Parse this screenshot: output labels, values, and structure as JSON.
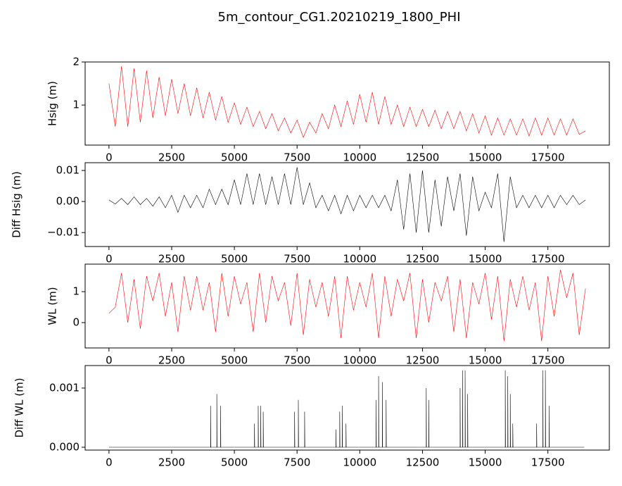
{
  "title": "5m_contour_CG1.20210219_1800_PHI",
  "chart_data": [
    {
      "type": "line",
      "y_label": "Hsig (m)",
      "xlim": [
        -950,
        19950
      ],
      "ylim": [
        0.07,
        2.0
      ],
      "xticks": [
        0,
        2500,
        5000,
        7500,
        10000,
        12500,
        15000,
        17500
      ],
      "yticks": [
        1,
        2
      ],
      "x": [
        0,
        250,
        500,
        750,
        1000,
        1250,
        1500,
        1750,
        2000,
        2250,
        2500,
        2750,
        3000,
        3250,
        3500,
        3750,
        4000,
        4250,
        4500,
        4750,
        5000,
        5250,
        5500,
        5750,
        6000,
        6250,
        6500,
        6750,
        7000,
        7250,
        7500,
        7750,
        8000,
        8250,
        8500,
        8750,
        9000,
        9250,
        9500,
        9750,
        10000,
        10250,
        10500,
        10750,
        11000,
        11250,
        11500,
        11750,
        12000,
        12250,
        12500,
        12750,
        13000,
        13250,
        13500,
        13750,
        14000,
        14250,
        14500,
        14750,
        15000,
        15250,
        15500,
        15750,
        16000,
        16250,
        16500,
        16750,
        17000,
        17250,
        17500,
        17750,
        18000,
        18250,
        18500,
        18750,
        19000
      ],
      "series": [
        {
          "color": "#ff0000",
          "values": [
            1.5,
            0.5,
            1.9,
            0.5,
            1.85,
            0.6,
            1.8,
            0.7,
            1.65,
            0.75,
            1.6,
            0.8,
            1.5,
            0.75,
            1.4,
            0.7,
            1.3,
            0.65,
            1.2,
            0.6,
            1.05,
            0.55,
            0.95,
            0.5,
            0.85,
            0.45,
            0.8,
            0.4,
            0.7,
            0.35,
            0.65,
            0.25,
            0.6,
            0.35,
            0.8,
            0.45,
            1.0,
            0.5,
            1.1,
            0.55,
            1.25,
            0.6,
            1.3,
            0.55,
            1.2,
            0.55,
            1.0,
            0.5,
            0.95,
            0.5,
            0.9,
            0.5,
            0.88,
            0.45,
            0.85,
            0.45,
            0.85,
            0.4,
            0.8,
            0.35,
            0.75,
            0.3,
            0.7,
            0.3,
            0.68,
            0.3,
            0.68,
            0.28,
            0.7,
            0.3,
            0.7,
            0.3,
            0.68,
            0.3,
            0.68,
            0.32,
            0.4
          ]
        }
      ]
    },
    {
      "type": "line",
      "y_label": "Diff Hsig (m)",
      "xlim": [
        -950,
        19950
      ],
      "ylim": [
        -0.0145,
        0.0125
      ],
      "xticks": [
        0,
        2500,
        5000,
        7500,
        10000,
        12500,
        15000,
        17500
      ],
      "yticks": [
        {
          "value": -0.01,
          "label": "−0.01"
        },
        {
          "value": 0,
          "label": "0.00"
        },
        0.01
      ],
      "x": [
        0,
        250,
        500,
        750,
        1000,
        1250,
        1500,
        1750,
        2000,
        2250,
        2500,
        2750,
        3000,
        3250,
        3500,
        3750,
        4000,
        4250,
        4500,
        4750,
        5000,
        5250,
        5500,
        5750,
        6000,
        6250,
        6500,
        6750,
        7000,
        7250,
        7500,
        7750,
        8000,
        8250,
        8500,
        8750,
        9000,
        9250,
        9500,
        9750,
        10000,
        10250,
        10500,
        10750,
        11000,
        11250,
        11500,
        11750,
        12000,
        12250,
        12500,
        12750,
        13000,
        13250,
        13500,
        13750,
        14000,
        14250,
        14500,
        14750,
        15000,
        15250,
        15500,
        15750,
        16000,
        16250,
        16500,
        16750,
        17000,
        17250,
        17500,
        17750,
        18000,
        18250,
        18500,
        18750,
        19000
      ],
      "series": [
        {
          "color": "#000000",
          "values": [
            0.0005,
            -0.0008,
            0.001,
            -0.001,
            0.0015,
            -0.001,
            0.001,
            -0.0015,
            0.0015,
            -0.002,
            0.002,
            -0.0035,
            0.002,
            -0.002,
            0.002,
            -0.002,
            0.004,
            -0.001,
            0.004,
            -0.001,
            0.007,
            -0.001,
            0.009,
            -0.001,
            0.009,
            -0.001,
            0.008,
            -0.001,
            0.009,
            -0.001,
            0.011,
            -0.001,
            0.006,
            -0.002,
            0.002,
            -0.003,
            0.002,
            -0.004,
            0.002,
            -0.003,
            0.002,
            -0.002,
            0.002,
            -0.002,
            0.002,
            -0.003,
            0.007,
            -0.009,
            0.009,
            -0.01,
            0.01,
            -0.01,
            0.007,
            -0.008,
            0.008,
            -0.003,
            0.009,
            -0.011,
            0.008,
            -0.003,
            0.003,
            -0.002,
            0.009,
            -0.013,
            0.008,
            -0.002,
            0.002,
            -0.002,
            0.002,
            -0.002,
            0.002,
            -0.002,
            0.002,
            -0.001,
            0.002,
            -0.001,
            0.0005
          ]
        }
      ]
    },
    {
      "type": "line",
      "y_label": "WL (m)",
      "xlim": [
        -950,
        19950
      ],
      "ylim": [
        -0.82,
        1.89
      ],
      "xticks": [
        0,
        2500,
        5000,
        7500,
        10000,
        12500,
        15000,
        17500
      ],
      "yticks": [
        0,
        1
      ],
      "x": [
        0,
        250,
        500,
        750,
        1000,
        1250,
        1500,
        1750,
        2000,
        2250,
        2500,
        2750,
        3000,
        3250,
        3500,
        3750,
        4000,
        4250,
        4500,
        4750,
        5000,
        5250,
        5500,
        5750,
        6000,
        6250,
        6500,
        6750,
        7000,
        7250,
        7500,
        7750,
        8000,
        8250,
        8500,
        8750,
        9000,
        9250,
        9500,
        9750,
        10000,
        10250,
        10500,
        10750,
        11000,
        11250,
        11500,
        11750,
        12000,
        12250,
        12500,
        12750,
        13000,
        13250,
        13500,
        13750,
        14000,
        14250,
        14500,
        14750,
        15000,
        15250,
        15500,
        15750,
        16000,
        16250,
        16500,
        16750,
        17000,
        17250,
        17500,
        17750,
        18000,
        18250,
        18500,
        18750,
        19000
      ],
      "series": [
        {
          "color": "#ff0000",
          "values": [
            0.3,
            0.5,
            1.6,
            0.0,
            1.4,
            -0.2,
            1.5,
            0.7,
            1.6,
            0.2,
            1.3,
            -0.3,
            1.5,
            0.4,
            1.5,
            0.4,
            1.3,
            -0.3,
            1.6,
            0.2,
            1.5,
            0.6,
            1.3,
            -0.3,
            1.6,
            0.0,
            1.5,
            0.7,
            1.3,
            -0.1,
            1.6,
            -0.4,
            1.4,
            0.5,
            1.3,
            0.2,
            1.5,
            -0.5,
            1.5,
            0.4,
            1.3,
            0.5,
            1.6,
            -0.5,
            1.5,
            0.2,
            1.4,
            0.7,
            1.6,
            -0.5,
            1.4,
            0.0,
            1.3,
            0.7,
            1.5,
            -0.3,
            1.4,
            -0.5,
            1.3,
            0.6,
            1.6,
            0.1,
            1.5,
            -0.6,
            1.4,
            0.5,
            1.5,
            0.4,
            1.3,
            -0.6,
            1.5,
            0.2,
            1.7,
            0.8,
            1.6,
            -0.4,
            1.1
          ]
        }
      ]
    },
    {
      "type": "line",
      "y_label": "Diff WL (m)",
      "xlim": [
        -950,
        19950
      ],
      "ylim": [
        -4.76e-05,
        0.00138
      ],
      "xticks": [
        0,
        2500,
        5000,
        7500,
        10000,
        12500,
        15000,
        17500
      ],
      "yticks": [
        {
          "value": 0,
          "label": "0.000"
        },
        0.001
      ],
      "x": [
        0,
        4050,
        4050,
        4060,
        4300,
        4300,
        4310,
        4450,
        4450,
        4460,
        5800,
        5800,
        5810,
        5950,
        5950,
        5960,
        6050,
        6050,
        6060,
        6150,
        6150,
        6160,
        7400,
        7400,
        7410,
        7550,
        7550,
        7560,
        7800,
        7800,
        7810,
        9050,
        9050,
        9060,
        9200,
        9200,
        9210,
        9300,
        9300,
        9310,
        9450,
        9450,
        9460,
        10650,
        10650,
        10660,
        10750,
        10750,
        10760,
        10900,
        10900,
        10910,
        11050,
        11050,
        11060,
        12650,
        12650,
        12660,
        12750,
        12750,
        12760,
        14000,
        14000,
        14010,
        14100,
        14100,
        14110,
        14200,
        14200,
        14210,
        14300,
        14300,
        14310,
        15800,
        15800,
        15810,
        15900,
        15900,
        15910,
        16000,
        16000,
        16010,
        16100,
        16100,
        16110,
        17050,
        17050,
        17060,
        17300,
        17300,
        17310,
        17400,
        17400,
        17410,
        17550,
        17550,
        17560,
        18950
      ],
      "series": [
        {
          "color": "#000000",
          "values": [
            0,
            0,
            0.0007,
            0,
            0,
            0.0009,
            0,
            0,
            0.0007,
            0,
            0,
            0.0004,
            0,
            0,
            0.0007,
            0,
            0,
            0.0007,
            0,
            0,
            0.0006,
            0,
            0,
            0.0006,
            0,
            0,
            0.0008,
            0,
            0,
            0.0006,
            0,
            0,
            0.0003,
            0,
            0,
            0.0006,
            0,
            0,
            0.0007,
            0,
            0,
            0.0004,
            0,
            0,
            0.0008,
            0,
            0,
            0.0012,
            0,
            0,
            0.0011,
            0,
            0,
            0.0008,
            0,
            0,
            0.001,
            0,
            0,
            0.0008,
            0,
            0,
            0.001,
            0,
            0,
            0.0013,
            0,
            0,
            0.0013,
            0,
            0,
            0.0009,
            0,
            0,
            0.0013,
            0,
            0,
            0.0012,
            0,
            0,
            0.0009,
            0,
            0,
            0.0004,
            0,
            0,
            0.0004,
            0,
            0,
            0.0013,
            0,
            0,
            0.0013,
            0,
            0,
            0.0007,
            0,
            0
          ]
        }
      ]
    }
  ]
}
